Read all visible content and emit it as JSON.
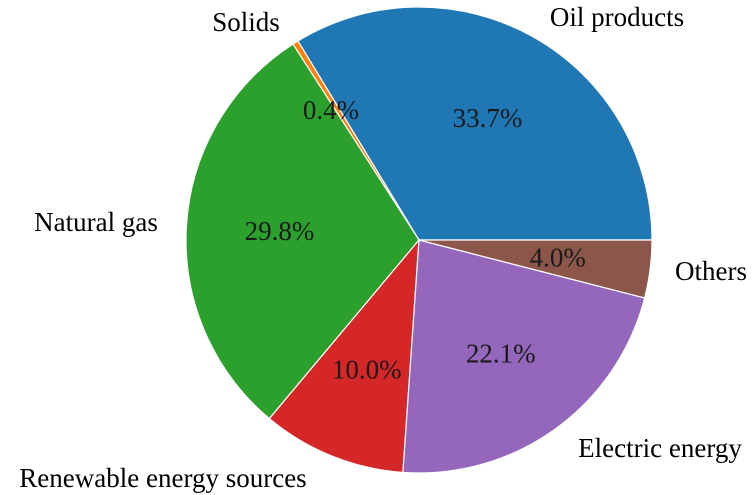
{
  "chart_data": {
    "type": "pie",
    "title": "",
    "start_angle_deg": 0,
    "direction": "counterclockwise",
    "slices": [
      {
        "label": "Oil products",
        "value": 33.7,
        "pct_text": "33.7%",
        "color": "#1f77b4"
      },
      {
        "label": "Solids",
        "value": 0.4,
        "pct_text": "0.4%",
        "color": "#ff7f0e"
      },
      {
        "label": "Natural gas",
        "value": 29.8,
        "pct_text": "29.8%",
        "color": "#2ca02c"
      },
      {
        "label": "Renewable energy sources",
        "value": 10.0,
        "pct_text": "10.0%",
        "color": "#d62728"
      },
      {
        "label": "Electric energy",
        "value": 22.1,
        "pct_text": "22.1%",
        "color": "#9467bd"
      },
      {
        "label": "Others",
        "value": 4.0,
        "pct_text": "4.0%",
        "color": "#8c564b"
      }
    ]
  }
}
